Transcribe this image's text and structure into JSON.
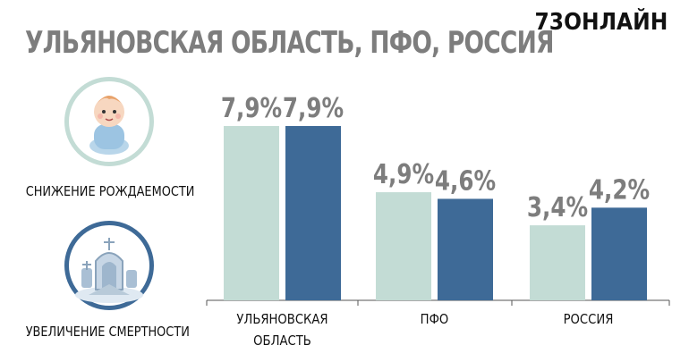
{
  "header": {
    "title": "УЛЬЯНОВСКАЯ ОБЛАСТЬ, ПФО, РОССИЯ",
    "logo": "73ОНЛАЙН"
  },
  "legend": {
    "birth_label": "СНИЖЕНИЕ РОЖДАЕМОСТИ",
    "death_label": "УВЕЛИЧЕНИЕ СМЕРТНОСТИ",
    "birth_icon": "baby-icon",
    "death_icon": "cemetery-icon"
  },
  "colors": {
    "series_birth": "#c3dcd5",
    "series_death": "#3e6a97",
    "value_labels": "#7d7d7d"
  },
  "chart_data": {
    "type": "bar",
    "categories": [
      [
        "УЛЬЯНОВСКАЯ",
        "ОБЛАСТЬ"
      ],
      [
        "ПФО"
      ],
      [
        "РОССИЯ"
      ]
    ],
    "series": [
      {
        "name": "СНИЖЕНИЕ РОЖДАЕМОСТИ",
        "values": [
          7.9,
          4.9,
          3.4
        ],
        "labels": [
          "7,9%",
          "4,9%",
          "3,4%"
        ]
      },
      {
        "name": "УВЕЛИЧЕНИЕ СМЕРТНОСТИ",
        "values": [
          7.9,
          4.6,
          4.2
        ],
        "labels": [
          "7,9%",
          "4,6%",
          "4,2%"
        ]
      }
    ],
    "ylim": [
      0,
      7.9
    ],
    "unit": "%",
    "grid": false,
    "legend": "left"
  }
}
